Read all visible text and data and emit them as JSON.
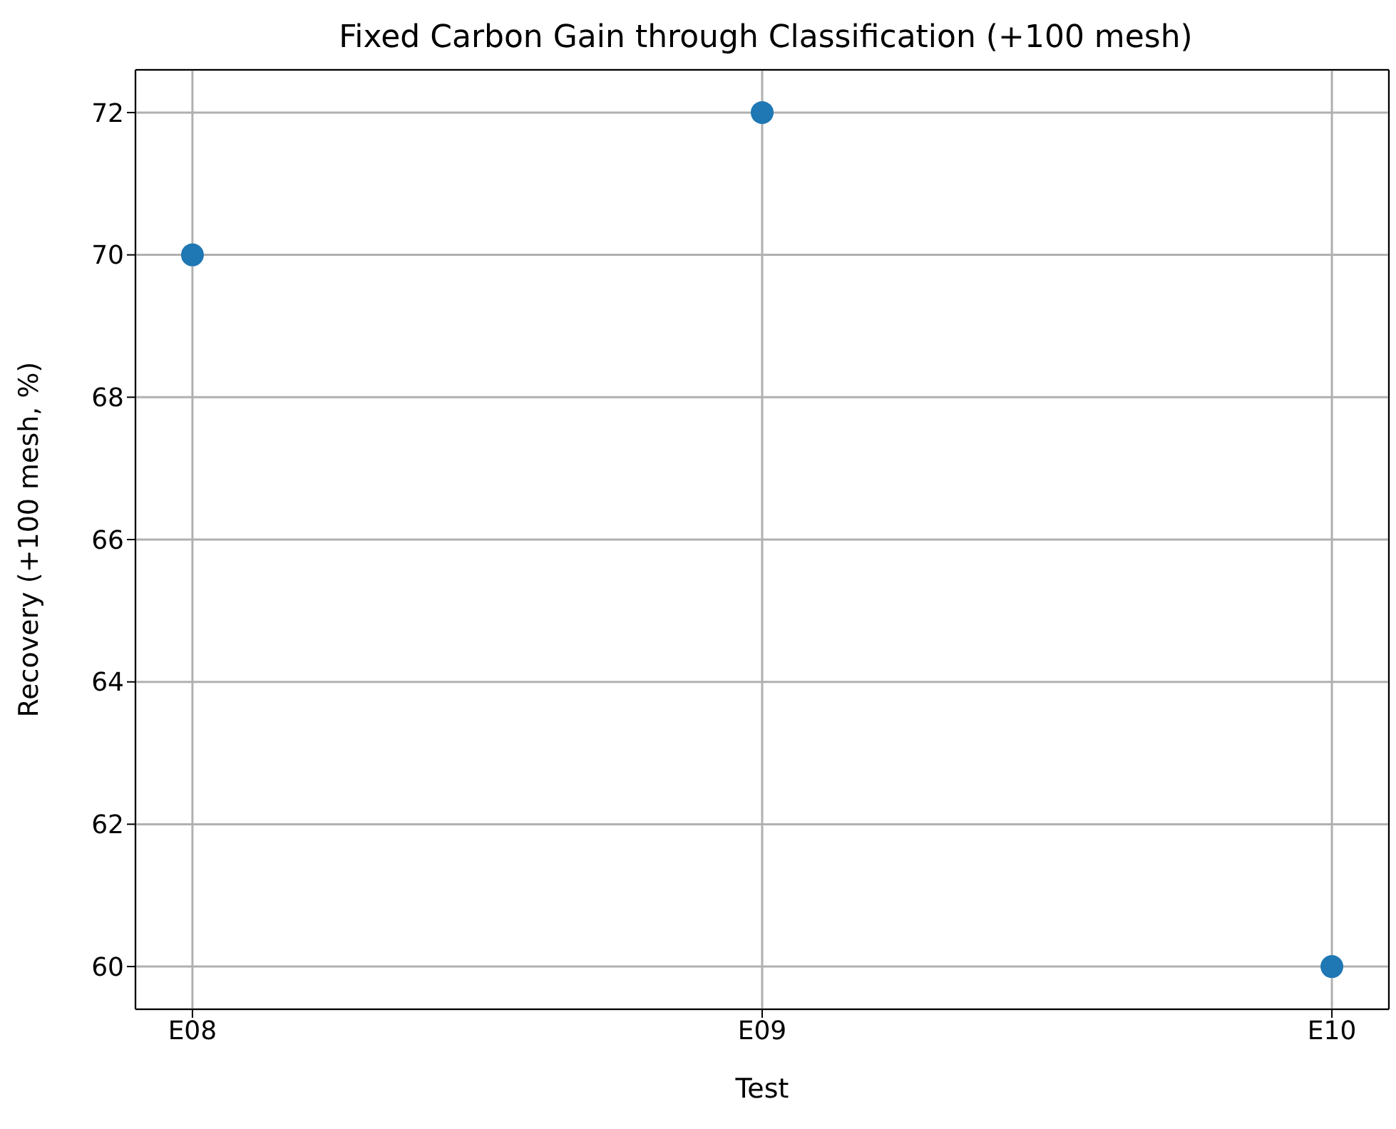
{
  "chart_data": {
    "type": "scatter",
    "title": "Fixed Carbon Gain through Classification (+100 mesh)",
    "xlabel": "Test",
    "ylabel": "Recovery (+100 mesh, %)",
    "categories": [
      "E08",
      "E09",
      "E10"
    ],
    "series": [
      {
        "color": "#1f77b4",
        "values": [
          70,
          72,
          60
        ]
      }
    ],
    "ylim": [
      59.4,
      72.6
    ],
    "yticks": [
      60,
      62,
      64,
      66,
      68,
      70,
      72
    ],
    "grid": true,
    "marker": "circle"
  }
}
